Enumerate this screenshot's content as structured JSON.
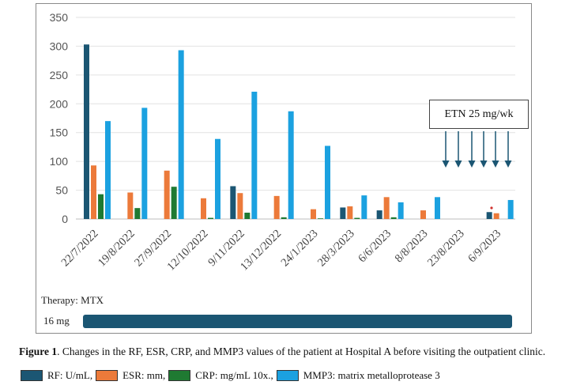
{
  "chart_data": {
    "type": "bar",
    "categories": [
      "22/7/2022",
      "19/8/2022",
      "27/9/2022",
      "12/10/2022",
      "9/11/2022",
      "13/12/2022",
      "24/1/2023",
      "28/3/2023",
      "6/6/2023",
      "8/8/2023",
      "23/8/2023",
      "6/9/2023"
    ],
    "series": [
      {
        "name": "RF: U/mL,",
        "color": "#1b5673",
        "values": [
          303,
          null,
          null,
          null,
          57,
          null,
          null,
          20,
          15,
          null,
          null,
          12
        ]
      },
      {
        "name": "ESR: mm,",
        "color": "#ec7a3a",
        "values": [
          93,
          46,
          84,
          36,
          45,
          40,
          17,
          22,
          38,
          15,
          null,
          10
        ]
      },
      {
        "name": "CRP: mg/mL 10x.,",
        "color": "#1f7a32",
        "values": [
          43,
          19,
          56,
          2,
          11,
          3,
          0,
          2,
          3,
          null,
          null,
          null
        ]
      },
      {
        "name": "MMP3: matrix metalloprotease 3",
        "color": "#1ba1e0",
        "values": [
          170,
          193,
          293,
          139,
          221,
          187,
          127,
          41,
          29,
          38,
          null,
          33
        ]
      }
    ],
    "yticks": [
      0,
      50,
      100,
      150,
      200,
      250,
      300,
      350
    ],
    "ylim": [
      0,
      350
    ],
    "grid": true,
    "annotation": "ETN 25 mg/wk"
  },
  "therapy": {
    "label": "Therapy: MTX",
    "dose": "16 mg"
  },
  "caption": {
    "prefix": "Figure 1",
    "text": ". Changes in the RF, ESR, CRP, and MMP3 values of the patient at Hospital A before visiting the outpatient clinic."
  }
}
